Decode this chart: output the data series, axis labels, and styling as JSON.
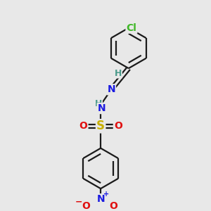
{
  "bg_color": "#e8e8e8",
  "bond_color": "#1a1a1a",
  "bond_width": 1.6,
  "atom_colors": {
    "C": "#1a1a1a",
    "H": "#4a9a8a",
    "N": "#1a1ae0",
    "O": "#e01010",
    "S": "#c8b000",
    "Cl": "#40b828"
  },
  "font_size": 10,
  "fig_size": [
    3.0,
    3.0
  ],
  "dpi": 100,
  "xlim": [
    0,
    10
  ],
  "ylim": [
    0,
    10
  ]
}
